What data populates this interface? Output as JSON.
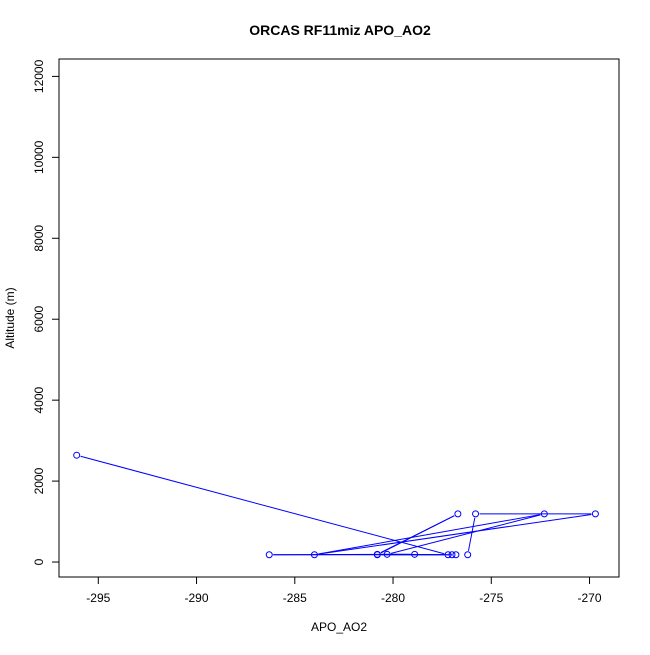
{
  "chart_data": {
    "type": "line",
    "title": "ORCAS RF11miz APO_AO2",
    "xlabel": "APO_AO2",
    "ylabel": "Altitude (m)",
    "xlim": [
      -297,
      -268.5
    ],
    "ylim": [
      -370,
      12430
    ],
    "x_ticks": [
      -295,
      -290,
      -285,
      -280,
      -275,
      -270
    ],
    "y_ticks": [
      0,
      2000,
      4000,
      6000,
      8000,
      10000,
      12000
    ],
    "grid": false,
    "series": [
      {
        "color": "#0000ff",
        "marker": "open-circle",
        "points": [
          {
            "x": -296.1,
            "y": 2640
          },
          {
            "x": -277.2,
            "y": 180
          },
          {
            "x": -280.8,
            "y": 180
          },
          {
            "x": -276.7,
            "y": 1190
          },
          {
            "x": -280.8,
            "y": 190
          },
          {
            "x": -278.9,
            "y": 190
          },
          {
            "x": -286.3,
            "y": 180
          },
          {
            "x": -277.0,
            "y": 180
          },
          {
            "x": -276.8,
            "y": 180
          },
          {
            "x": -280.3,
            "y": 190
          },
          {
            "x": -272.3,
            "y": 1190
          },
          {
            "x": -284.0,
            "y": 180
          },
          {
            "x": -269.7,
            "y": 1190
          },
          {
            "x": -275.8,
            "y": 1190
          },
          {
            "x": -276.2,
            "y": 180
          }
        ]
      }
    ]
  }
}
